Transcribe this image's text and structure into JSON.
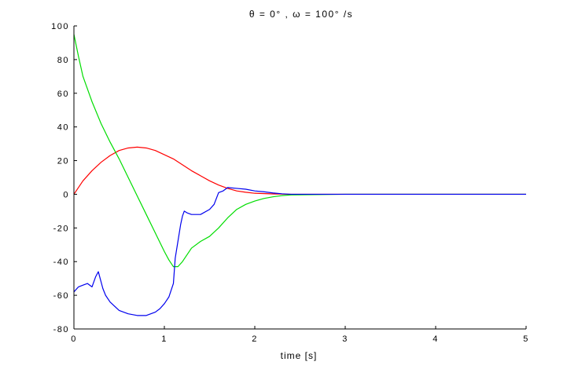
{
  "chart_data": {
    "type": "line",
    "title": "θ = 0° , ω = 100° /s",
    "xlabel": "time [s]",
    "ylabel": "",
    "xlim": [
      0,
      5
    ],
    "ylim": [
      -80,
      100
    ],
    "xticks": [
      "0",
      "1",
      "2",
      "3",
      "4",
      "5"
    ],
    "yticks": [
      "-80",
      "-60",
      "-40",
      "-20",
      "0",
      "20",
      "40",
      "60",
      "80",
      "100"
    ],
    "grid": false,
    "legend": "none",
    "series": [
      {
        "color": "#ff0000",
        "x": [
          0,
          0.1,
          0.2,
          0.3,
          0.4,
          0.5,
          0.6,
          0.7,
          0.8,
          0.9,
          1.0,
          1.1,
          1.2,
          1.3,
          1.4,
          1.5,
          1.6,
          1.7,
          1.8,
          1.9,
          2.0,
          2.2,
          2.4,
          3.0,
          4.0,
          5.0
        ],
        "y": [
          0,
          8,
          14,
          19,
          23,
          26,
          27.5,
          28,
          27.5,
          26,
          23.5,
          21,
          17.5,
          14,
          11,
          8,
          5.5,
          3.5,
          2,
          1.2,
          0.6,
          0.2,
          0,
          0,
          0,
          0
        ]
      },
      {
        "color": "#00dd00",
        "x": [
          0,
          0.05,
          0.1,
          0.2,
          0.3,
          0.4,
          0.5,
          0.6,
          0.7,
          0.8,
          0.9,
          1.0,
          1.05,
          1.1,
          1.15,
          1.2,
          1.3,
          1.4,
          1.5,
          1.6,
          1.7,
          1.8,
          1.9,
          2.0,
          2.1,
          2.2,
          2.3,
          2.4,
          3.0,
          4.0,
          5.0
        ],
        "y": [
          95,
          82,
          70,
          55,
          42,
          31,
          21,
          10,
          -1,
          -12,
          -23,
          -34,
          -39,
          -43,
          -43,
          -40,
          -32,
          -28,
          -25,
          -20,
          -14,
          -9,
          -6,
          -4,
          -2.5,
          -1.5,
          -0.8,
          -0.4,
          0,
          0,
          0
        ]
      },
      {
        "color": "#0000ee",
        "x": [
          0,
          0.05,
          0.1,
          0.15,
          0.2,
          0.24,
          0.27,
          0.29,
          0.32,
          0.35,
          0.4,
          0.5,
          0.6,
          0.7,
          0.8,
          0.9,
          0.95,
          1.0,
          1.05,
          1.1,
          1.12,
          1.15,
          1.18,
          1.2,
          1.22,
          1.25,
          1.3,
          1.4,
          1.5,
          1.55,
          1.6,
          1.65,
          1.7,
          1.8,
          1.9,
          2.0,
          2.1,
          2.2,
          2.3,
          2.4,
          3.0,
          4.0,
          5.0
        ],
        "y": [
          -58,
          -55,
          -54,
          -53,
          -55,
          -49,
          -46,
          -50,
          -56,
          -60,
          -64,
          -69,
          -71,
          -72,
          -72,
          -70,
          -68,
          -65,
          -61,
          -53,
          -38,
          -28,
          -18,
          -13,
          -10,
          -11,
          -12,
          -12,
          -9,
          -6,
          1,
          2,
          4,
          3.5,
          3,
          2,
          1.5,
          0.8,
          0.3,
          0,
          0,
          0,
          0
        ]
      }
    ]
  }
}
